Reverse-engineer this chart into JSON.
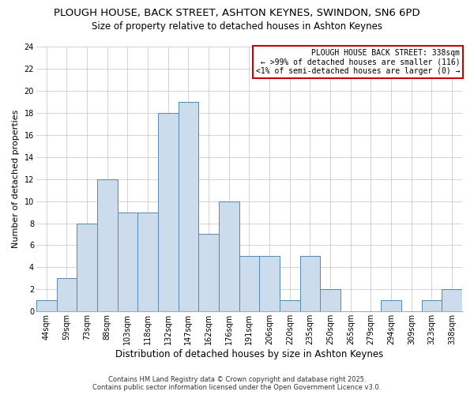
{
  "title": "PLOUGH HOUSE, BACK STREET, ASHTON KEYNES, SWINDON, SN6 6PD",
  "subtitle": "Size of property relative to detached houses in Ashton Keynes",
  "xlabel": "Distribution of detached houses by size in Ashton Keynes",
  "ylabel": "Number of detached properties",
  "bin_labels": [
    "44sqm",
    "59sqm",
    "73sqm",
    "88sqm",
    "103sqm",
    "118sqm",
    "132sqm",
    "147sqm",
    "162sqm",
    "176sqm",
    "191sqm",
    "206sqm",
    "220sqm",
    "235sqm",
    "250sqm",
    "265sqm",
    "279sqm",
    "294sqm",
    "309sqm",
    "323sqm",
    "338sqm"
  ],
  "bar_heights": [
    1,
    3,
    8,
    12,
    9,
    9,
    18,
    19,
    7,
    10,
    5,
    5,
    1,
    5,
    2,
    0,
    0,
    1,
    0,
    1,
    2
  ],
  "bar_color": "#ccdcec",
  "bar_edge_color": "#5588aa",
  "grid_color": "#cccccc",
  "background_color": "#ffffff",
  "annotation_box_text_line1": "PLOUGH HOUSE BACK STREET: 338sqm",
  "annotation_box_text_line2": "← >99% of detached houses are smaller (116)",
  "annotation_box_text_line3": "<1% of semi-detached houses are larger (0) →",
  "annotation_box_edge_color": "#cc0000",
  "ylim": [
    0,
    24
  ],
  "yticks": [
    0,
    2,
    4,
    6,
    8,
    10,
    12,
    14,
    16,
    18,
    20,
    22,
    24
  ],
  "footer_line1": "Contains HM Land Registry data © Crown copyright and database right 2025.",
  "footer_line2": "Contains public sector information licensed under the Open Government Licence v3.0.",
  "title_fontsize": 9.5,
  "subtitle_fontsize": 8.5,
  "xlabel_fontsize": 8.5,
  "ylabel_fontsize": 8,
  "tick_fontsize": 7,
  "annotation_fontsize": 7,
  "footer_fontsize": 6
}
